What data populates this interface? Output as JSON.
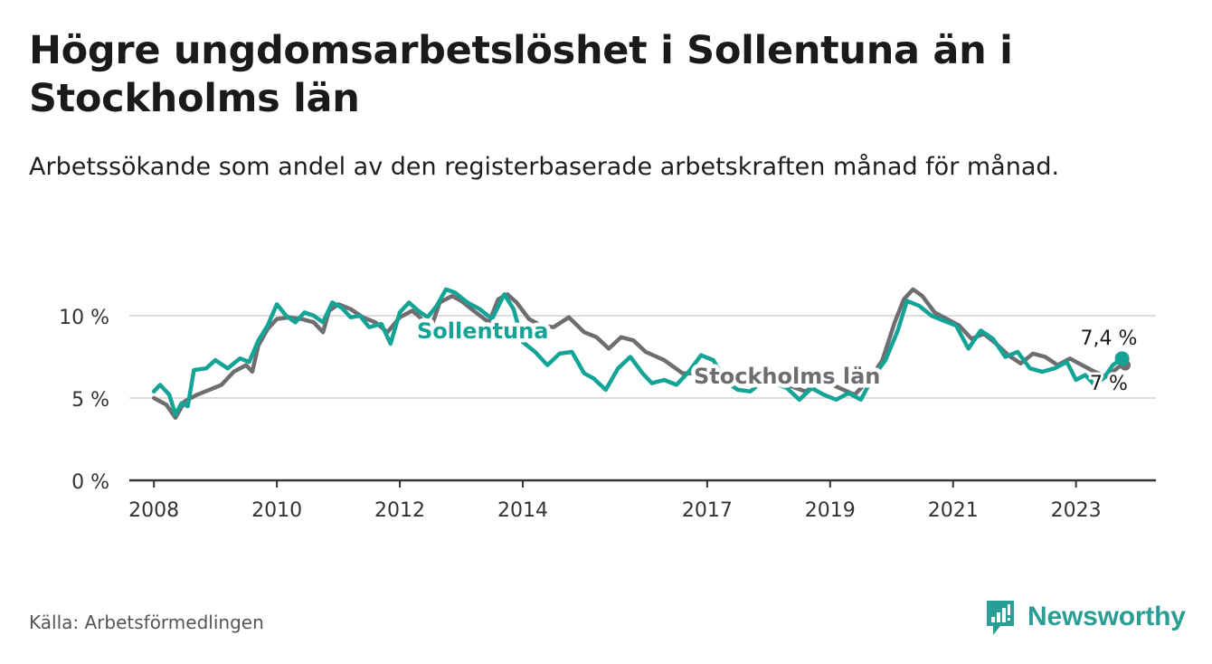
{
  "title": "Högre ungdomsarbetslöshet i Sollentuna än i Stockholms län",
  "subtitle": "Arbetssökande som andel av den registerbaserade arbetskraften månad för månad.",
  "source": "Källa: Arbetsförmedlingen",
  "brand": "Newsworthy",
  "colors": {
    "sollentuna": "#13a496",
    "stockholm": "#6e6e72",
    "axis": "#333333",
    "grid": "#dddddd",
    "brand": "#2a9d95"
  },
  "chart_data": {
    "type": "line",
    "title": "Högre ungdomsarbetslöshet i Sollentuna än i Stockholms län",
    "xlabel": "",
    "ylabel": "",
    "xlim": [
      2007.6,
      2024.3
    ],
    "ylim": [
      0,
      10
    ],
    "x_ticks": [
      {
        "value": 2008,
        "label": "2008"
      },
      {
        "value": 2010,
        "label": "2010"
      },
      {
        "value": 2012,
        "label": "2012"
      },
      {
        "value": 2014,
        "label": "2014"
      },
      {
        "value": 2017,
        "label": "2017"
      },
      {
        "value": 2019,
        "label": "2019"
      },
      {
        "value": 2021,
        "label": "2021"
      },
      {
        "value": 2023,
        "label": "2023"
      }
    ],
    "y_ticks": [
      {
        "value": 0,
        "label": "0 %"
      },
      {
        "value": 5,
        "label": "5 %"
      },
      {
        "value": 10,
        "label": "10 %"
      }
    ],
    "series": [
      {
        "name": "Stockholms län",
        "label": "Stockholms län",
        "end_label": "7 %",
        "points": [
          [
            2008.0,
            5.0
          ],
          [
            2008.2,
            4.6
          ],
          [
            2008.35,
            3.8
          ],
          [
            2008.5,
            4.8
          ],
          [
            2008.7,
            5.2
          ],
          [
            2008.9,
            5.5
          ],
          [
            2009.1,
            5.8
          ],
          [
            2009.3,
            6.6
          ],
          [
            2009.5,
            7.0
          ],
          [
            2009.6,
            6.6
          ],
          [
            2009.7,
            8.2
          ],
          [
            2009.85,
            9.2
          ],
          [
            2010.0,
            9.8
          ],
          [
            2010.2,
            9.9
          ],
          [
            2010.4,
            9.8
          ],
          [
            2010.6,
            9.6
          ],
          [
            2010.75,
            9.0
          ],
          [
            2010.85,
            10.3
          ],
          [
            2011.0,
            10.7
          ],
          [
            2011.2,
            10.4
          ],
          [
            2011.4,
            9.9
          ],
          [
            2011.6,
            9.6
          ],
          [
            2011.8,
            9.0
          ],
          [
            2012.0,
            9.9
          ],
          [
            2012.2,
            10.3
          ],
          [
            2012.3,
            10.0
          ],
          [
            2012.5,
            9.2
          ],
          [
            2012.65,
            10.8
          ],
          [
            2012.85,
            11.2
          ],
          [
            2013.0,
            10.9
          ],
          [
            2013.2,
            10.3
          ],
          [
            2013.45,
            9.6
          ],
          [
            2013.6,
            11.0
          ],
          [
            2013.75,
            11.3
          ],
          [
            2013.9,
            10.8
          ],
          [
            2014.1,
            9.8
          ],
          [
            2014.3,
            9.4
          ],
          [
            2014.5,
            9.3
          ],
          [
            2014.75,
            9.9
          ],
          [
            2015.0,
            9.0
          ],
          [
            2015.2,
            8.7
          ],
          [
            2015.4,
            8.0
          ],
          [
            2015.6,
            8.7
          ],
          [
            2015.8,
            8.5
          ],
          [
            2016.0,
            7.8
          ],
          [
            2016.3,
            7.3
          ],
          [
            2016.6,
            6.5
          ],
          [
            2016.9,
            6.5
          ],
          [
            2017.2,
            6.0
          ],
          [
            2017.5,
            6.2
          ],
          [
            2017.8,
            5.9
          ],
          [
            2018.0,
            6.1
          ],
          [
            2018.3,
            5.8
          ],
          [
            2018.6,
            5.4
          ],
          [
            2018.9,
            6.1
          ],
          [
            2019.1,
            5.7
          ],
          [
            2019.4,
            5.2
          ],
          [
            2019.65,
            6.2
          ],
          [
            2019.85,
            7.3
          ],
          [
            2020.05,
            9.6
          ],
          [
            2020.2,
            11.0
          ],
          [
            2020.35,
            11.6
          ],
          [
            2020.5,
            11.2
          ],
          [
            2020.7,
            10.2
          ],
          [
            2020.9,
            9.8
          ],
          [
            2021.1,
            9.4
          ],
          [
            2021.3,
            8.6
          ],
          [
            2021.5,
            8.9
          ],
          [
            2021.7,
            8.3
          ],
          [
            2021.9,
            7.6
          ],
          [
            2022.1,
            7.1
          ],
          [
            2022.3,
            7.7
          ],
          [
            2022.5,
            7.5
          ],
          [
            2022.7,
            7.0
          ],
          [
            2022.9,
            7.4
          ],
          [
            2023.1,
            7.0
          ],
          [
            2023.3,
            6.6
          ],
          [
            2023.5,
            6.3
          ],
          [
            2023.7,
            6.9
          ],
          [
            2023.8,
            7.0
          ]
        ]
      },
      {
        "name": "Sollentuna",
        "label": "Sollentuna",
        "end_label": "7,4 %",
        "points": [
          [
            2008.0,
            5.4
          ],
          [
            2008.1,
            5.8
          ],
          [
            2008.25,
            5.2
          ],
          [
            2008.35,
            4.0
          ],
          [
            2008.45,
            4.7
          ],
          [
            2008.55,
            4.5
          ],
          [
            2008.65,
            6.7
          ],
          [
            2008.85,
            6.8
          ],
          [
            2009.0,
            7.3
          ],
          [
            2009.2,
            6.8
          ],
          [
            2009.4,
            7.4
          ],
          [
            2009.55,
            7.2
          ],
          [
            2009.7,
            8.5
          ],
          [
            2009.85,
            9.4
          ],
          [
            2010.0,
            10.7
          ],
          [
            2010.15,
            10.0
          ],
          [
            2010.3,
            9.6
          ],
          [
            2010.45,
            10.2
          ],
          [
            2010.6,
            10.0
          ],
          [
            2010.75,
            9.6
          ],
          [
            2010.9,
            10.8
          ],
          [
            2011.05,
            10.5
          ],
          [
            2011.2,
            9.9
          ],
          [
            2011.35,
            10.0
          ],
          [
            2011.5,
            9.3
          ],
          [
            2011.7,
            9.5
          ],
          [
            2011.85,
            8.3
          ],
          [
            2012.0,
            10.2
          ],
          [
            2012.15,
            10.8
          ],
          [
            2012.3,
            10.3
          ],
          [
            2012.45,
            9.9
          ],
          [
            2012.6,
            10.6
          ],
          [
            2012.75,
            11.6
          ],
          [
            2012.9,
            11.4
          ],
          [
            2013.1,
            10.8
          ],
          [
            2013.3,
            10.4
          ],
          [
            2013.5,
            9.8
          ],
          [
            2013.7,
            11.3
          ],
          [
            2013.85,
            10.4
          ],
          [
            2014.0,
            8.4
          ],
          [
            2014.2,
            7.8
          ],
          [
            2014.4,
            7.0
          ],
          [
            2014.6,
            7.7
          ],
          [
            2014.8,
            7.8
          ],
          [
            2015.0,
            6.5
          ],
          [
            2015.15,
            6.2
          ],
          [
            2015.35,
            5.5
          ],
          [
            2015.55,
            6.8
          ],
          [
            2015.75,
            7.5
          ],
          [
            2015.95,
            6.5
          ],
          [
            2016.1,
            5.9
          ],
          [
            2016.3,
            6.1
          ],
          [
            2016.5,
            5.8
          ],
          [
            2016.7,
            6.6
          ],
          [
            2016.9,
            7.6
          ],
          [
            2017.1,
            7.3
          ],
          [
            2017.3,
            6.0
          ],
          [
            2017.5,
            5.5
          ],
          [
            2017.7,
            5.4
          ],
          [
            2017.9,
            6.0
          ],
          [
            2018.1,
            5.9
          ],
          [
            2018.3,
            5.6
          ],
          [
            2018.5,
            4.9
          ],
          [
            2018.7,
            5.6
          ],
          [
            2018.9,
            5.2
          ],
          [
            2019.1,
            4.9
          ],
          [
            2019.3,
            5.3
          ],
          [
            2019.5,
            4.9
          ],
          [
            2019.7,
            6.3
          ],
          [
            2019.9,
            7.3
          ],
          [
            2020.1,
            9.1
          ],
          [
            2020.25,
            10.9
          ],
          [
            2020.45,
            10.6
          ],
          [
            2020.65,
            10.0
          ],
          [
            2020.85,
            9.7
          ],
          [
            2021.05,
            9.4
          ],
          [
            2021.25,
            8.0
          ],
          [
            2021.45,
            9.1
          ],
          [
            2021.65,
            8.6
          ],
          [
            2021.85,
            7.5
          ],
          [
            2022.05,
            7.8
          ],
          [
            2022.25,
            6.8
          ],
          [
            2022.45,
            6.6
          ],
          [
            2022.65,
            6.8
          ],
          [
            2022.85,
            7.2
          ],
          [
            2023.0,
            6.1
          ],
          [
            2023.15,
            6.4
          ],
          [
            2023.3,
            5.8
          ],
          [
            2023.45,
            6.2
          ],
          [
            2023.6,
            7.0
          ],
          [
            2023.75,
            7.4
          ]
        ]
      }
    ]
  }
}
